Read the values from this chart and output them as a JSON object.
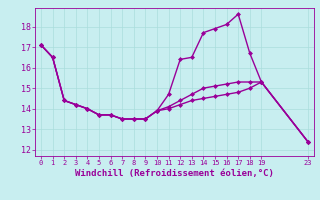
{
  "bg_color": "#c8eef0",
  "line_color": "#990099",
  "marker": "D",
  "markersize": 2,
  "linewidth": 1.0,
  "xlabel": "Windchill (Refroidissement éolien,°C)",
  "xlabel_fontsize": 6.5,
  "ylabel_ticks": [
    12,
    13,
    14,
    15,
    16,
    17,
    18
  ],
  "xlim": [
    -0.5,
    23.5
  ],
  "ylim": [
    11.7,
    18.9
  ],
  "xticks": [
    0,
    1,
    2,
    3,
    4,
    5,
    6,
    7,
    8,
    9,
    10,
    11,
    12,
    13,
    14,
    15,
    16,
    17,
    18,
    19,
    23
  ],
  "xtick_labels": [
    "0",
    "1",
    "2",
    "3",
    "4",
    "5",
    "6",
    "7",
    "8",
    "9",
    "10",
    "11",
    "12",
    "13",
    "14",
    "15",
    "16",
    "17",
    "18",
    "19",
    "23"
  ],
  "grid_color": "#aadddd",
  "line1_x": [
    0,
    1,
    2,
    3,
    4,
    5,
    6,
    7,
    8,
    9,
    10,
    11,
    12,
    13,
    14,
    15,
    16,
    17,
    18,
    19,
    23
  ],
  "line1_y": [
    17.1,
    16.5,
    14.4,
    14.2,
    14.0,
    13.7,
    13.7,
    13.5,
    13.5,
    13.5,
    13.9,
    14.7,
    16.4,
    16.5,
    17.7,
    17.9,
    18.1,
    18.6,
    16.7,
    15.3,
    12.4
  ],
  "line2_x": [
    0,
    1,
    2,
    3,
    4,
    5,
    6,
    7,
    8,
    9,
    10,
    11,
    12,
    13,
    14,
    15,
    16,
    17,
    18,
    19,
    23
  ],
  "line2_y": [
    17.1,
    16.5,
    14.4,
    14.2,
    14.0,
    13.7,
    13.7,
    13.5,
    13.5,
    13.5,
    13.9,
    14.1,
    14.4,
    14.7,
    15.0,
    15.1,
    15.2,
    15.3,
    15.3,
    15.3,
    12.4
  ],
  "line3_x": [
    0,
    1,
    2,
    3,
    4,
    5,
    6,
    7,
    8,
    9,
    10,
    11,
    12,
    13,
    14,
    15,
    16,
    17,
    18,
    19,
    23
  ],
  "line3_y": [
    17.1,
    16.5,
    14.4,
    14.2,
    14.0,
    13.7,
    13.7,
    13.5,
    13.5,
    13.5,
    13.9,
    14.0,
    14.2,
    14.4,
    14.5,
    14.6,
    14.7,
    14.8,
    15.0,
    15.3,
    12.4
  ]
}
